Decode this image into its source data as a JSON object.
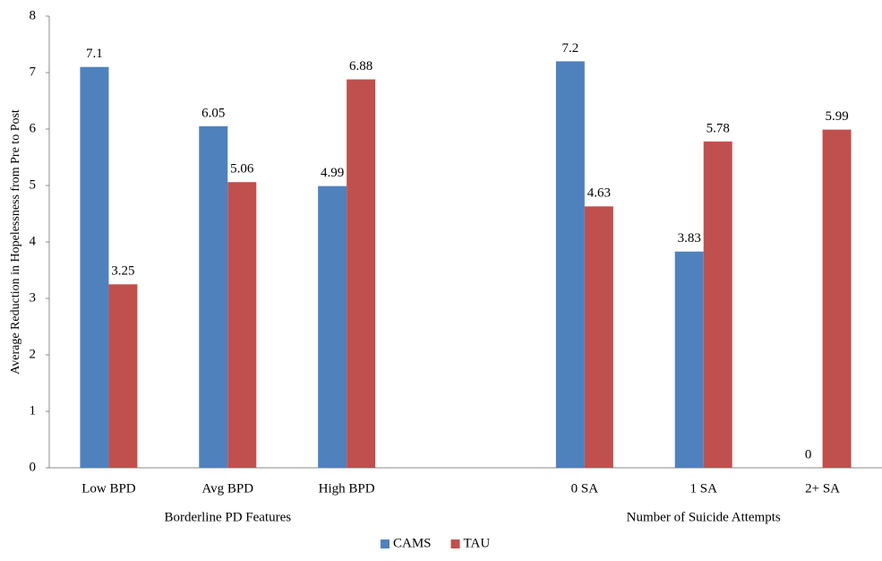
{
  "chart_data": {
    "type": "bar",
    "y_label": "Average Reduction in Hopelessness from Pre to Post",
    "categories": [
      "Low BPD",
      "Avg BPD",
      "High BPD",
      null,
      "0 SA",
      "1 SA",
      "2+ SA"
    ],
    "group_labels": [
      "Borderline PD Features",
      "Number of Suicide Attempts"
    ],
    "series": [
      {
        "name": "CAMS",
        "color": "#4f81bd",
        "values": [
          7.1,
          6.05,
          4.99,
          null,
          7.2,
          3.83,
          0
        ]
      },
      {
        "name": "TAU",
        "color": "#c0504d",
        "values": [
          3.25,
          5.06,
          6.88,
          null,
          4.63,
          5.78,
          5.99
        ]
      }
    ],
    "ylim": [
      0,
      8
    ],
    "yticks": [
      0,
      1,
      2,
      3,
      4,
      5,
      6,
      7,
      8
    ],
    "grid": false,
    "legend": "bottom"
  }
}
